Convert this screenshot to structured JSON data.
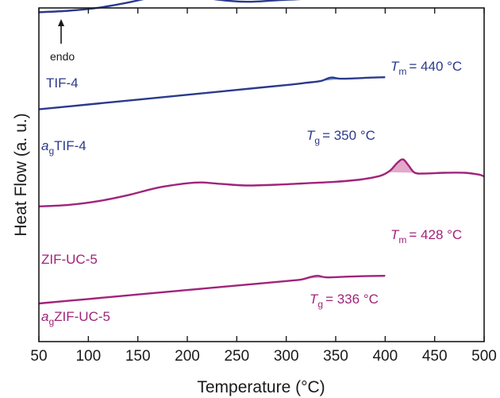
{
  "colors": {
    "blue": "#2b3a8c",
    "blue_fill": "#5b9bd5",
    "magenta": "#a0247a",
    "magenta_fill": "#e3a3c7",
    "axis": "#1a1a1a"
  },
  "chart_data": {
    "type": "line",
    "xlabel": "Temperature (°C)",
    "ylabel": "Heat Flow (a. u.)",
    "xlim": [
      50,
      500
    ],
    "xticks": [
      50,
      100,
      150,
      200,
      250,
      300,
      350,
      400,
      450,
      500
    ],
    "yticks_shown": false,
    "endo_label": "endo",
    "series": [
      {
        "name": "TIF-4",
        "label_sub": "",
        "color": "blue",
        "offset": 0.78,
        "x": [
          50,
          80,
          110,
          140,
          170,
          190,
          210,
          230,
          260,
          290,
          320,
          350,
          380,
          400,
          410,
          418,
          424,
          430,
          436,
          444,
          455,
          475,
          500
        ],
        "y": [
          0.0,
          0.004,
          0.012,
          0.026,
          0.043,
          0.048,
          0.044,
          0.034,
          0.028,
          0.032,
          0.036,
          0.042,
          0.05,
          0.058,
          0.065,
          0.08,
          0.112,
          0.13,
          0.105,
          0.078,
          0.071,
          0.073,
          0.074
        ],
        "peak": {
          "x1": 412,
          "x2": 442,
          "label": "= 440 °C",
          "sym": "T",
          "sub": "m"
        }
      },
      {
        "name": "TIF-4",
        "label_sub": "a",
        "label_sub_text": "g",
        "color": "blue",
        "offset": 0.52,
        "x": [
          50,
          100,
          150,
          200,
          250,
          300,
          320,
          335,
          345,
          355,
          370,
          385,
          400
        ],
        "y": [
          0.0,
          0.013,
          0.026,
          0.039,
          0.052,
          0.065,
          0.071,
          0.076,
          0.085,
          0.082,
          0.083,
          0.085,
          0.086
        ],
        "peak": {
          "x1": 332,
          "x2": 360,
          "label": "= 350 °C",
          "sym": "T",
          "sub": "g"
        }
      },
      {
        "name": "ZIF-UC-5",
        "label_sub": "",
        "color": "magenta",
        "offset": 0.26,
        "x": [
          50,
          80,
          110,
          140,
          170,
          200,
          215,
          235,
          260,
          290,
          320,
          350,
          375,
          395,
          405,
          412,
          418,
          424,
          430,
          440,
          460,
          480,
          495,
          500
        ],
        "y": [
          0.0,
          0.004,
          0.014,
          0.03,
          0.05,
          0.062,
          0.064,
          0.06,
          0.056,
          0.058,
          0.062,
          0.066,
          0.072,
          0.082,
          0.096,
          0.116,
          0.126,
          0.108,
          0.09,
          0.088,
          0.09,
          0.09,
          0.085,
          0.08
        ],
        "peak": {
          "x1": 402,
          "x2": 430,
          "label": "= 428 °C",
          "sym": "T",
          "sub": "m"
        }
      },
      {
        "name": "ZIF-UC-5",
        "label_sub": "a",
        "label_sub_text": "g",
        "color": "magenta",
        "offset": 0.0,
        "x": [
          50,
          100,
          150,
          200,
          250,
          300,
          315,
          325,
          332,
          340,
          355,
          375,
          400
        ],
        "y": [
          0.0,
          0.012,
          0.024,
          0.036,
          0.048,
          0.06,
          0.064,
          0.071,
          0.074,
          0.07,
          0.071,
          0.073,
          0.074
        ],
        "peak": {
          "x1": 318,
          "x2": 346,
          "label": "= 336 °C",
          "sym": "T",
          "sub": "g"
        }
      }
    ]
  }
}
